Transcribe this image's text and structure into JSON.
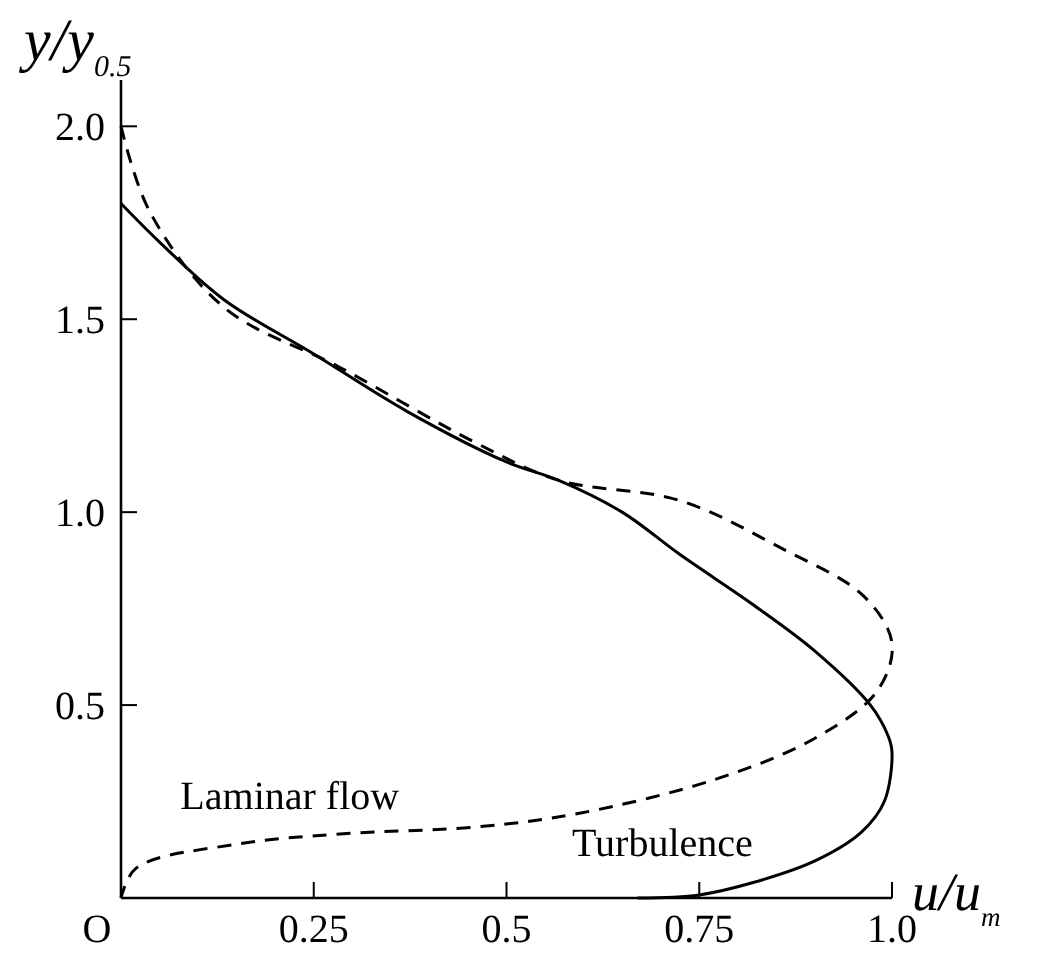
{
  "chart_data": {
    "type": "line",
    "xlabel": "u/u$_{m}$",
    "ylabel": "y/y$_{0.5}$",
    "xlim": [
      0,
      1.0
    ],
    "ylim": [
      0,
      2.12
    ],
    "xticks": [
      {
        "value": 0,
        "label": "O"
      },
      0.25,
      0.5,
      0.75,
      {
        "value": 1.0,
        "label": "1.0"
      }
    ],
    "yticks": [
      0.5,
      {
        "value": 1.0,
        "label": "1.0"
      },
      1.5,
      {
        "value": 2.0,
        "label": "2.0"
      }
    ],
    "grid": false,
    "marker": "none",
    "series": [
      {
        "name": "Laminar flow",
        "color": "#000000",
        "line_style": "dashed",
        "x": [
          0,
          0.037,
          0.134,
          0.284,
          0.46,
          0.567,
          0.725,
          0.857,
          0.963,
          1.0,
          0.981,
          0.9,
          0.77,
          0.593,
          0.46,
          0.284,
          0.152,
          0.02,
          0
        ],
        "values": [
          2.0,
          1.78,
          1.53,
          1.375,
          1.18,
          1.083,
          1.03,
          0.906,
          0.783,
          0.66,
          0.537,
          0.414,
          0.307,
          0.219,
          0.184,
          0.166,
          0.14,
          0.078,
          0
        ]
      },
      {
        "name": "Turbulence",
        "color": "#000000",
        "line_style": "solid",
        "x": [
          0,
          0.05,
          0.134,
          0.25,
          0.372,
          0.5,
          0.567,
          0.65,
          0.725,
          0.82,
          0.9,
          0.972,
          0.995,
          1.0,
          0.99,
          0.96,
          0.9,
          0.82,
          0.75,
          0.67
        ],
        "values": [
          1.8,
          1.7,
          1.55,
          1.41,
          1.26,
          1.13,
          1.083,
          1.0,
          0.89,
          0.76,
          0.64,
          0.5,
          0.42,
          0.378,
          0.25,
          0.17,
          0.096,
          0.04,
          0.008,
          0
        ]
      }
    ]
  }
}
